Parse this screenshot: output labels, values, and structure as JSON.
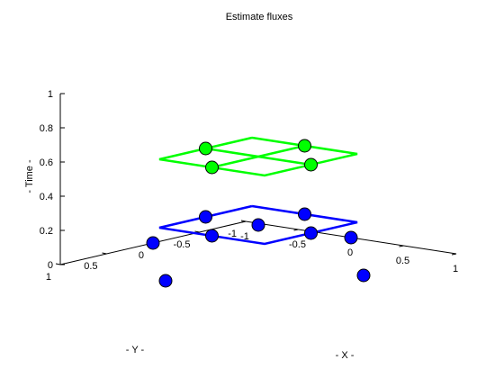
{
  "title": "Estimate fluxes",
  "axes": {
    "x_label": "- X -",
    "y_label": "- Y -",
    "z_label": "- Time -",
    "x_ticks": [
      "-1",
      "-0.5",
      "0",
      "0.5",
      "1"
    ],
    "y_ticks": [
      "-1",
      "-0.5",
      "0",
      "0.5",
      "1"
    ],
    "z_ticks": [
      "0",
      "0.2",
      "0.4",
      "0.6",
      "0.8",
      "1"
    ],
    "xlim": [
      -1,
      1
    ],
    "ylim": [
      -1,
      1
    ],
    "zlim": [
      0,
      1
    ]
  },
  "colors": {
    "blue": "#0000ff",
    "green": "#00ff00",
    "axis": "#000000",
    "background": "#ffffff"
  },
  "chart_data": {
    "type": "scatter",
    "projection": "3d",
    "title": "Estimate fluxes",
    "xlabel": "- X -",
    "ylabel": "- Y -",
    "zlabel": "- Time -",
    "xlim": [
      -1,
      1
    ],
    "ylim": [
      -1,
      1
    ],
    "zlim": [
      0,
      1
    ],
    "grid": false,
    "series": [
      {
        "color": "#0000ff",
        "kind": "points",
        "points": [
          {
            "x": -1,
            "y": 0,
            "z": 0
          },
          {
            "x": 0,
            "y": -1,
            "z": 0
          },
          {
            "x": 0,
            "y": 1,
            "z": 0
          },
          {
            "x": 1,
            "y": 0,
            "z": 0
          },
          {
            "x": -0.5,
            "y": 0,
            "z": 0.2
          },
          {
            "x": 0,
            "y": -0.5,
            "z": 0.2
          },
          {
            "x": 0,
            "y": 0,
            "z": 0.2
          },
          {
            "x": 0,
            "y": 0.5,
            "z": 0.2
          },
          {
            "x": 0.5,
            "y": 0,
            "z": 0.2
          }
        ]
      },
      {
        "color": "#0000ff",
        "kind": "lines",
        "z": 0.2,
        "lines": [
          [
            {
              "x": -0.5,
              "y": -0.5
            },
            {
              "x": 0.5,
              "y": -0.5
            },
            {
              "x": 0.5,
              "y": 0.5
            },
            {
              "x": -0.5,
              "y": 0.5
            },
            {
              "x": -0.5,
              "y": -0.5
            }
          ]
        ]
      },
      {
        "color": "#00ff00",
        "kind": "points",
        "points": [
          {
            "x": -0.5,
            "y": 0,
            "z": 0.6
          },
          {
            "x": 0,
            "y": -0.5,
            "z": 0.6
          },
          {
            "x": 0,
            "y": 0.5,
            "z": 0.6
          },
          {
            "x": 0.5,
            "y": 0,
            "z": 0.6
          }
        ]
      },
      {
        "color": "#00ff00",
        "kind": "lines",
        "z": 0.6,
        "lines": [
          [
            {
              "x": -0.5,
              "y": -0.5
            },
            {
              "x": 0.5,
              "y": -0.5
            },
            {
              "x": 0.5,
              "y": 0.5
            },
            {
              "x": -0.5,
              "y": 0.5
            },
            {
              "x": -0.5,
              "y": -0.5
            }
          ],
          [
            {
              "x": 0,
              "y": -0.5
            },
            {
              "x": 0,
              "y": 0.5
            }
          ],
          [
            {
              "x": -0.5,
              "y": 0
            },
            {
              "x": 0.5,
              "y": 0
            }
          ]
        ]
      }
    ]
  }
}
